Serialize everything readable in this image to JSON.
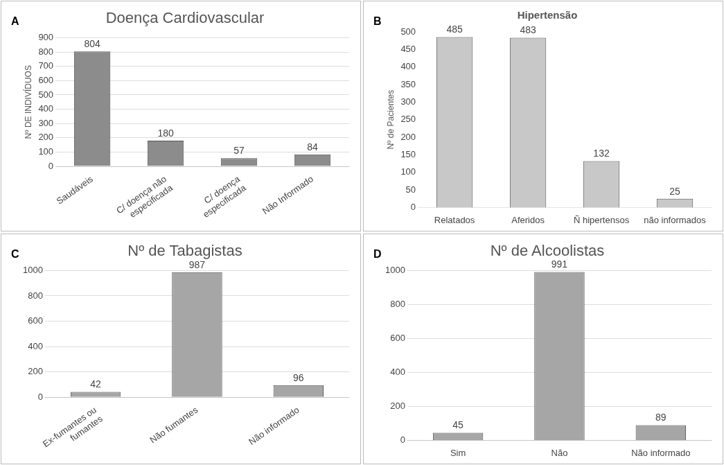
{
  "chart_data": [
    {
      "type": "bar",
      "title": "Doença Cardiovascular",
      "ylabel": "Nº DE INDIVÍDUOS",
      "annotations": [
        "A"
      ],
      "categories": [
        "Saudáveis",
        "C/ doença não especificada",
        "C/ doença especificada",
        "Não Informado"
      ],
      "values": [
        804,
        180,
        57,
        84
      ],
      "color": "#8c8c8c",
      "ylim": [
        0,
        900
      ],
      "yticks": [
        0,
        100,
        200,
        300,
        400,
        500,
        600,
        700,
        800,
        900
      ],
      "grid": "y",
      "data_labels": true
    },
    {
      "type": "bar",
      "title": "Hipertensão",
      "ylabel": "Nº de Pacientes",
      "annotations": [
        "B"
      ],
      "categories": [
        "Relatados",
        "Aferidos",
        "Ñ hipertensos",
        "não informados"
      ],
      "values": [
        485,
        483,
        132,
        25
      ],
      "color": "#c8c8c8",
      "ylim": [
        0,
        500
      ],
      "yticks": [
        0,
        50,
        100,
        150,
        200,
        250,
        300,
        350,
        400,
        450,
        500
      ],
      "grid": false,
      "data_labels": true
    },
    {
      "type": "bar",
      "title": "Nº de Tabagistas",
      "annotations": [
        "C"
      ],
      "categories": [
        "Ex-fumantes ou fumantes",
        "Não fumantes",
        "Não informado"
      ],
      "values": [
        42,
        987,
        96
      ],
      "color": "#a6a6a6",
      "ylim": [
        0,
        1000
      ],
      "yticks": [
        0,
        200,
        400,
        600,
        800,
        1000
      ],
      "grid": "y",
      "data_labels": true
    },
    {
      "type": "bar",
      "title": "Nº de Alcoolistas",
      "annotations": [
        "D"
      ],
      "categories": [
        "Sim",
        "Não",
        "Não informado"
      ],
      "values": [
        45,
        991,
        89
      ],
      "color": "#a6a6a6",
      "ylim": [
        0,
        1000
      ],
      "yticks": [
        0,
        200,
        400,
        600,
        800,
        1000
      ],
      "grid": "y",
      "data_labels": true
    }
  ]
}
